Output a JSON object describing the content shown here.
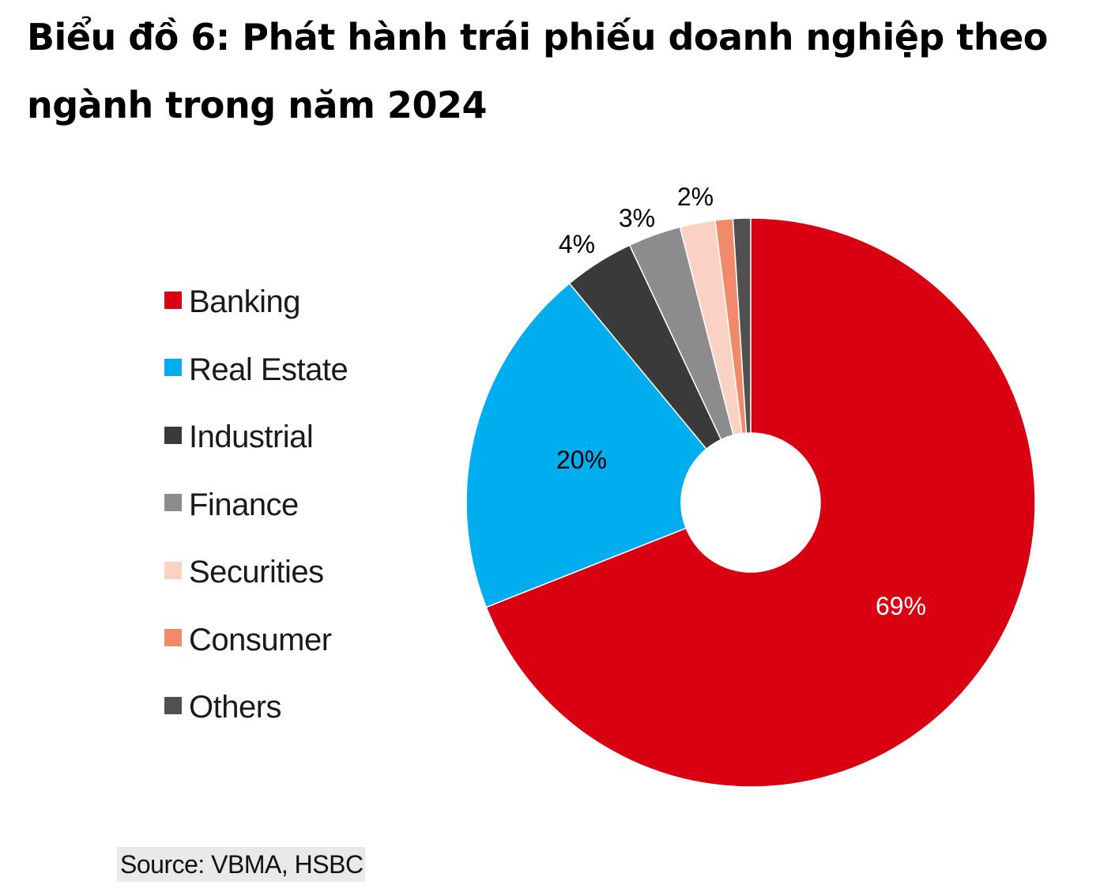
{
  "title": "Biểu đồ 6: Phát hành trái phiếu doanh nghiệp theo ngành trong năm 2024",
  "source": "Source: VBMA, HSBC",
  "chart_data": {
    "type": "pie",
    "donut": true,
    "legend_position": "left",
    "categories": [
      "Banking",
      "Real Estate",
      "Industrial",
      "Finance",
      "Securities",
      "Consumer",
      "Others"
    ],
    "values": [
      69,
      20,
      4,
      3,
      2,
      1,
      1
    ],
    "labels": [
      "69%",
      "20%",
      "4%",
      "3%",
      "2%",
      "",
      ""
    ],
    "colors": [
      "#d90012",
      "#00aeef",
      "#3a3a3a",
      "#8c8c8c",
      "#f9d2c4",
      "#f08a6a",
      "#505050"
    ],
    "label_colors": [
      "#ffffff",
      "#000000",
      "#000000",
      "#000000",
      "#000000",
      "#000000",
      "#000000"
    ]
  }
}
